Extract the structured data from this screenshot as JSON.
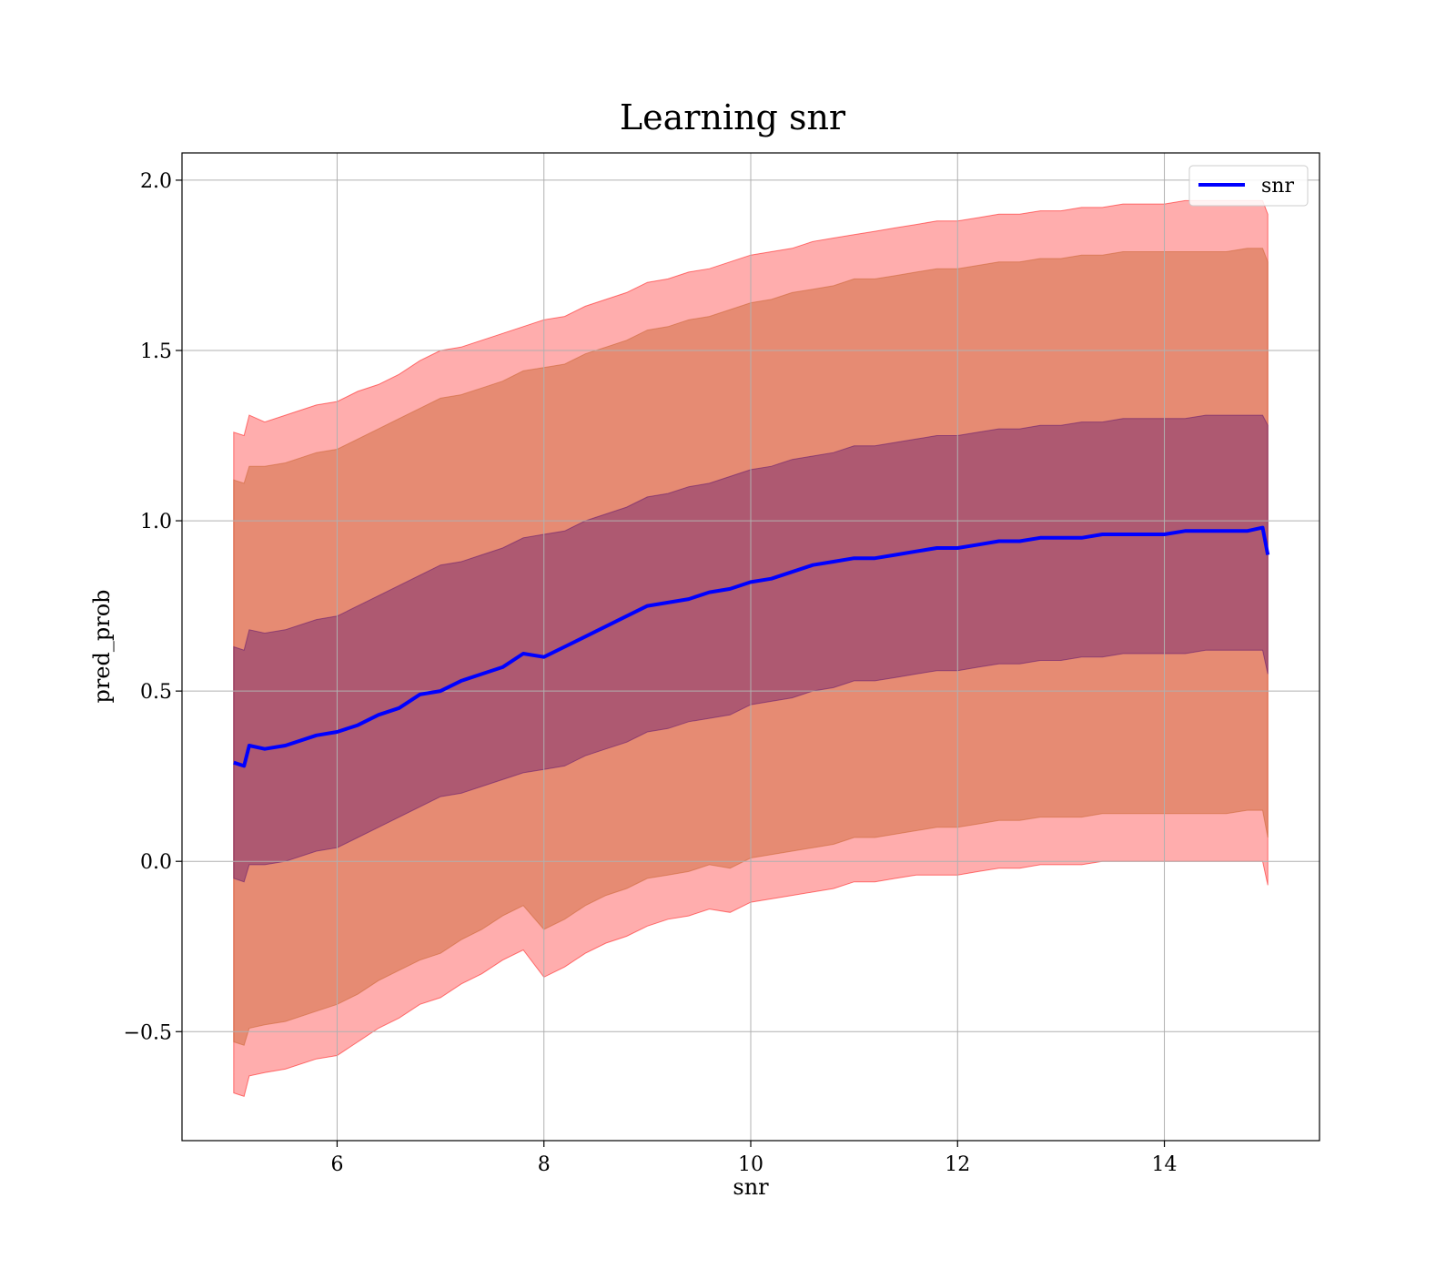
{
  "chart_data": {
    "type": "line",
    "title": "Learning snr",
    "xlabel": "snr",
    "ylabel": "pred_prob",
    "xlim": [
      4.5,
      15.5
    ],
    "ylim": [
      -0.82,
      2.08
    ],
    "x_ticks": [
      6,
      8,
      10,
      12,
      14
    ],
    "x_tick_labels": [
      "6",
      "8",
      "10",
      "12",
      "14"
    ],
    "y_ticks": [
      -0.5,
      0.0,
      0.5,
      1.0,
      1.5,
      2.0
    ],
    "y_tick_labels": [
      "−0.5",
      "0.0",
      "0.5",
      "1.0",
      "1.5",
      "2.0"
    ],
    "grid": true,
    "legend_position": "top-right",
    "series": [
      {
        "name": "snr",
        "color": "#0000ff",
        "x": [
          5.0,
          5.1,
          5.15,
          5.3,
          5.5,
          5.8,
          6.0,
          6.2,
          6.4,
          6.6,
          6.8,
          7.0,
          7.2,
          7.4,
          7.6,
          7.8,
          8.0,
          8.2,
          8.4,
          8.6,
          8.8,
          9.0,
          9.2,
          9.4,
          9.6,
          9.8,
          10.0,
          10.2,
          10.4,
          10.6,
          10.8,
          11.0,
          11.2,
          11.4,
          11.6,
          11.8,
          12.0,
          12.2,
          12.4,
          12.6,
          12.8,
          13.0,
          13.2,
          13.4,
          13.6,
          13.8,
          14.0,
          14.2,
          14.4,
          14.6,
          14.8,
          14.95,
          15.0
        ],
        "y": [
          0.29,
          0.28,
          0.34,
          0.33,
          0.34,
          0.37,
          0.38,
          0.4,
          0.43,
          0.45,
          0.49,
          0.5,
          0.53,
          0.55,
          0.57,
          0.61,
          0.6,
          0.63,
          0.66,
          0.69,
          0.72,
          0.75,
          0.76,
          0.77,
          0.79,
          0.8,
          0.82,
          0.83,
          0.85,
          0.87,
          0.88,
          0.89,
          0.89,
          0.9,
          0.91,
          0.92,
          0.92,
          0.93,
          0.94,
          0.94,
          0.95,
          0.95,
          0.95,
          0.96,
          0.96,
          0.96,
          0.96,
          0.97,
          0.97,
          0.97,
          0.97,
          0.98,
          0.9
        ],
        "bands": [
          {
            "color": "#ff0000",
            "opacity": 0.32,
            "lower": [
              -0.68,
              -0.69,
              -0.63,
              -0.62,
              -0.61,
              -0.58,
              -0.57,
              -0.53,
              -0.49,
              -0.46,
              -0.42,
              -0.4,
              -0.36,
              -0.33,
              -0.29,
              -0.26,
              -0.34,
              -0.31,
              -0.27,
              -0.24,
              -0.22,
              -0.19,
              -0.17,
              -0.16,
              -0.14,
              -0.15,
              -0.12,
              -0.11,
              -0.1,
              -0.09,
              -0.08,
              -0.06,
              -0.06,
              -0.05,
              -0.04,
              -0.04,
              -0.04,
              -0.03,
              -0.02,
              -0.02,
              -0.01,
              -0.01,
              -0.01,
              0.0,
              0.0,
              0.0,
              0.0,
              0.0,
              0.0,
              0.0,
              0.0,
              0.0,
              -0.07
            ],
            "upper": [
              1.26,
              1.25,
              1.31,
              1.29,
              1.31,
              1.34,
              1.35,
              1.38,
              1.4,
              1.43,
              1.47,
              1.5,
              1.51,
              1.53,
              1.55,
              1.57,
              1.59,
              1.6,
              1.63,
              1.65,
              1.67,
              1.7,
              1.71,
              1.73,
              1.74,
              1.76,
              1.78,
              1.79,
              1.8,
              1.82,
              1.83,
              1.84,
              1.85,
              1.86,
              1.87,
              1.88,
              1.88,
              1.89,
              1.9,
              1.9,
              1.91,
              1.91,
              1.92,
              1.92,
              1.93,
              1.93,
              1.93,
              1.94,
              1.94,
              1.94,
              1.94,
              1.94,
              1.9
            ]
          },
          {
            "color": "#c8622c",
            "opacity": 0.45,
            "lower": [
              -0.53,
              -0.54,
              -0.49,
              -0.48,
              -0.47,
              -0.44,
              -0.42,
              -0.39,
              -0.35,
              -0.32,
              -0.29,
              -0.27,
              -0.23,
              -0.2,
              -0.16,
              -0.13,
              -0.2,
              -0.17,
              -0.13,
              -0.1,
              -0.08,
              -0.05,
              -0.04,
              -0.03,
              -0.01,
              -0.02,
              0.01,
              0.02,
              0.03,
              0.04,
              0.05,
              0.07,
              0.07,
              0.08,
              0.09,
              0.1,
              0.1,
              0.11,
              0.12,
              0.12,
              0.13,
              0.13,
              0.13,
              0.14,
              0.14,
              0.14,
              0.14,
              0.14,
              0.14,
              0.14,
              0.15,
              0.15,
              0.07
            ],
            "upper": [
              1.12,
              1.11,
              1.16,
              1.16,
              1.17,
              1.2,
              1.21,
              1.24,
              1.27,
              1.3,
              1.33,
              1.36,
              1.37,
              1.39,
              1.41,
              1.44,
              1.45,
              1.46,
              1.49,
              1.51,
              1.53,
              1.56,
              1.57,
              1.59,
              1.6,
              1.62,
              1.64,
              1.65,
              1.67,
              1.68,
              1.69,
              1.71,
              1.71,
              1.72,
              1.73,
              1.74,
              1.74,
              1.75,
              1.76,
              1.76,
              1.77,
              1.77,
              1.78,
              1.78,
              1.79,
              1.79,
              1.79,
              1.79,
              1.79,
              1.79,
              1.8,
              1.8,
              1.76
            ]
          },
          {
            "color": "#5a0f6e",
            "opacity": 0.4,
            "lower": [
              -0.05,
              -0.06,
              -0.01,
              -0.01,
              0.0,
              0.03,
              0.04,
              0.07,
              0.1,
              0.13,
              0.16,
              0.19,
              0.2,
              0.22,
              0.24,
              0.26,
              0.27,
              0.28,
              0.31,
              0.33,
              0.35,
              0.38,
              0.39,
              0.41,
              0.42,
              0.43,
              0.46,
              0.47,
              0.48,
              0.5,
              0.51,
              0.53,
              0.53,
              0.54,
              0.55,
              0.56,
              0.56,
              0.57,
              0.58,
              0.58,
              0.59,
              0.59,
              0.6,
              0.6,
              0.61,
              0.61,
              0.61,
              0.61,
              0.62,
              0.62,
              0.62,
              0.62,
              0.55
            ],
            "upper": [
              0.63,
              0.62,
              0.68,
              0.67,
              0.68,
              0.71,
              0.72,
              0.75,
              0.78,
              0.81,
              0.84,
              0.87,
              0.88,
              0.9,
              0.92,
              0.95,
              0.96,
              0.97,
              1.0,
              1.02,
              1.04,
              1.07,
              1.08,
              1.1,
              1.11,
              1.13,
              1.15,
              1.16,
              1.18,
              1.19,
              1.2,
              1.22,
              1.22,
              1.23,
              1.24,
              1.25,
              1.25,
              1.26,
              1.27,
              1.27,
              1.28,
              1.28,
              1.29,
              1.29,
              1.3,
              1.3,
              1.3,
              1.3,
              1.31,
              1.31,
              1.31,
              1.31,
              1.28
            ]
          }
        ]
      }
    ]
  }
}
